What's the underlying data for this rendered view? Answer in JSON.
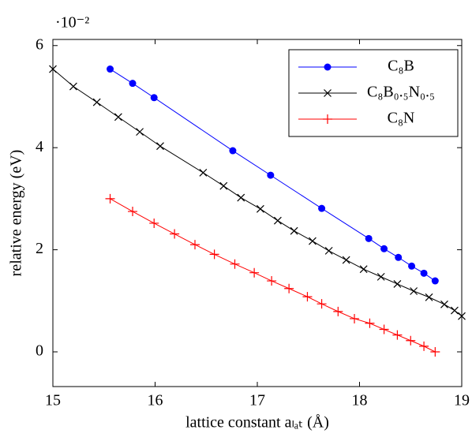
{
  "chart_data": {
    "type": "line",
    "x_label": "lattice constant aₗₐₜ (Å)",
    "y_label": "relative energy (eV)",
    "y_multiplier": "·10⁻²",
    "xlim": [
      15,
      19
    ],
    "xticks": [
      15,
      16,
      17,
      18,
      19
    ],
    "ylim": [
      -0.68,
      6.12
    ],
    "yticks": [
      0,
      2,
      4,
      6
    ],
    "legend": "top-right",
    "series": [
      {
        "name": "C₈B",
        "color": "#0000ff",
        "marker": "circle",
        "x": [
          15.56,
          15.78,
          15.99,
          16.76,
          17.13,
          17.63,
          18.09,
          18.24,
          18.38,
          18.51,
          18.63,
          18.74
        ],
        "values": [
          5.54,
          5.26,
          4.98,
          3.94,
          3.46,
          2.81,
          2.22,
          2.02,
          1.85,
          1.68,
          1.54,
          1.39
        ]
      },
      {
        "name": "C₈B₀.₅N₀.₅",
        "color": "#000000",
        "marker": "x",
        "x": [
          15.0,
          15.2,
          15.43,
          15.64,
          15.85,
          16.05,
          16.47,
          16.67,
          16.84,
          17.03,
          17.2,
          17.36,
          17.54,
          17.7,
          17.87,
          18.04,
          18.21,
          18.37,
          18.53,
          18.68,
          18.83,
          18.93,
          19.0
        ],
        "values": [
          5.54,
          5.2,
          4.89,
          4.6,
          4.31,
          4.03,
          3.51,
          3.25,
          3.02,
          2.8,
          2.57,
          2.37,
          2.17,
          1.98,
          1.8,
          1.62,
          1.47,
          1.33,
          1.19,
          1.07,
          0.93,
          0.81,
          0.7
        ]
      },
      {
        "name": "C₈N",
        "color": "#ff0000",
        "marker": "plus",
        "x": [
          15.56,
          15.78,
          15.99,
          16.19,
          16.39,
          16.58,
          16.78,
          16.97,
          17.14,
          17.31,
          17.49,
          17.63,
          17.79,
          17.95,
          18.1,
          18.24,
          18.37,
          18.5,
          18.63,
          18.74
        ],
        "values": [
          3.0,
          2.75,
          2.52,
          2.31,
          2.1,
          1.91,
          1.72,
          1.55,
          1.39,
          1.24,
          1.08,
          0.94,
          0.79,
          0.65,
          0.56,
          0.44,
          0.33,
          0.22,
          0.11,
          0.0
        ]
      }
    ]
  }
}
